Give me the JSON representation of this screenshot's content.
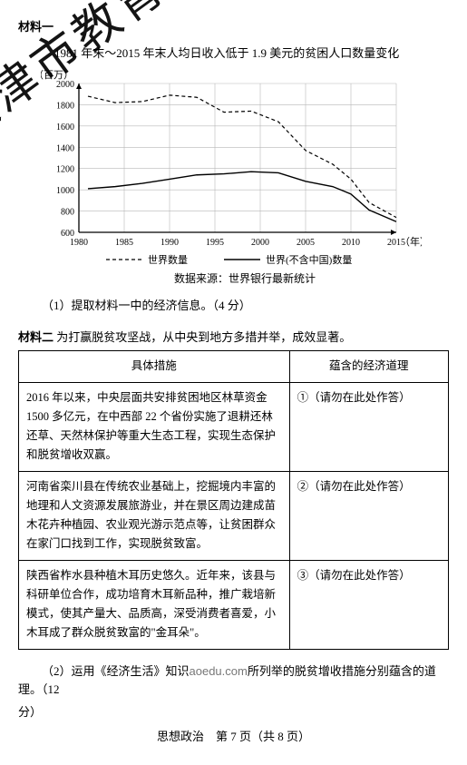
{
  "material1": {
    "label": "材料一",
    "chart": {
      "title": "1981 年末～2015 年末人均日收入低于 1.9 美元的贫困人口数量变化",
      "y_unit": "（百万）",
      "x_unit": "（年）",
      "ylim": [
        600,
        2000
      ],
      "ytick_step": 200,
      "yticks": [
        600,
        800,
        1000,
        1200,
        1400,
        1600,
        1800,
        2000
      ],
      "xticks": [
        1980,
        1985,
        1990,
        1995,
        2000,
        2005,
        2010,
        2015
      ],
      "grid_color": "#b8b8b8",
      "axis_color": "#000000",
      "background_color": "#ffffff",
      "series": {
        "world": {
          "label": "世界数量",
          "style": "dashed",
          "stroke": "#000000",
          "stroke_width": 1.2,
          "points": [
            [
              1981,
              1880
            ],
            [
              1984,
              1820
            ],
            [
              1987,
              1830
            ],
            [
              1990,
              1890
            ],
            [
              1993,
              1870
            ],
            [
              1996,
              1730
            ],
            [
              1999,
              1740
            ],
            [
              2002,
              1640
            ],
            [
              2005,
              1370
            ],
            [
              2008,
              1240
            ],
            [
              2010,
              1100
            ],
            [
              2012,
              880
            ],
            [
              2015,
              740
            ]
          ]
        },
        "world_ex_china": {
          "label": "世界(不含中国)数量",
          "style": "solid",
          "stroke": "#000000",
          "stroke_width": 1.4,
          "points": [
            [
              1981,
              1010
            ],
            [
              1984,
              1030
            ],
            [
              1987,
              1060
            ],
            [
              1990,
              1100
            ],
            [
              1993,
              1140
            ],
            [
              1996,
              1150
            ],
            [
              1999,
              1170
            ],
            [
              2002,
              1160
            ],
            [
              2005,
              1080
            ],
            [
              2008,
              1030
            ],
            [
              2010,
              960
            ],
            [
              2012,
              810
            ],
            [
              2015,
              700
            ]
          ]
        }
      },
      "source": "数据来源：世界银行最新统计"
    },
    "question1": "（1）提取材料一中的经济信息。（4 分）"
  },
  "material2": {
    "label": "材料二",
    "intro": "为打赢脱贫攻坚战，从中央到地方多措并举，成效显著。",
    "table": {
      "headers": [
        "具体措施",
        "蕴含的经济道理"
      ],
      "rows": [
        {
          "measure": "2016 年以来，中央层面共安排贫困地区林草资金 1500 多亿元，在中西部 22 个省份实施了退耕还林还草、天然林保护等重大生态工程，实现生态保护和脱贫增收双赢。",
          "answer": "①（请勿在此处作答）"
        },
        {
          "measure": "河南省栾川县在传统农业基础上，挖掘境内丰富的地理和人文资源发展旅游业，并在景区周边建成苗木花卉种植园、农业观光游示范点等，让贫困群众在家门口找到工作，实现脱贫致富。",
          "answer": "②（请勿在此处作答）"
        },
        {
          "measure": "陕西省柞水县种植木耳历史悠久。近年来，该县与科研单位合作，成功培育木耳新品种，推广栽培新模式，使其产量大、品质高，深受消费者喜爱，小木耳成了群众脱贫致富的\"金耳朵\"。",
          "answer": "③（请勿在此处作答）"
        }
      ]
    },
    "question2_a": "（2）运用《经济生活》知识",
    "question2_b": "所列举的脱贫增收措施分别蕴含的道理。（12",
    "question2_mid": "aoedu.com",
    "question2_c": "分）"
  },
  "footer": {
    "subject": "思想政治",
    "page": "第 7 页（共 8 页）"
  },
  "watermark": "天津市教育招生考试院"
}
